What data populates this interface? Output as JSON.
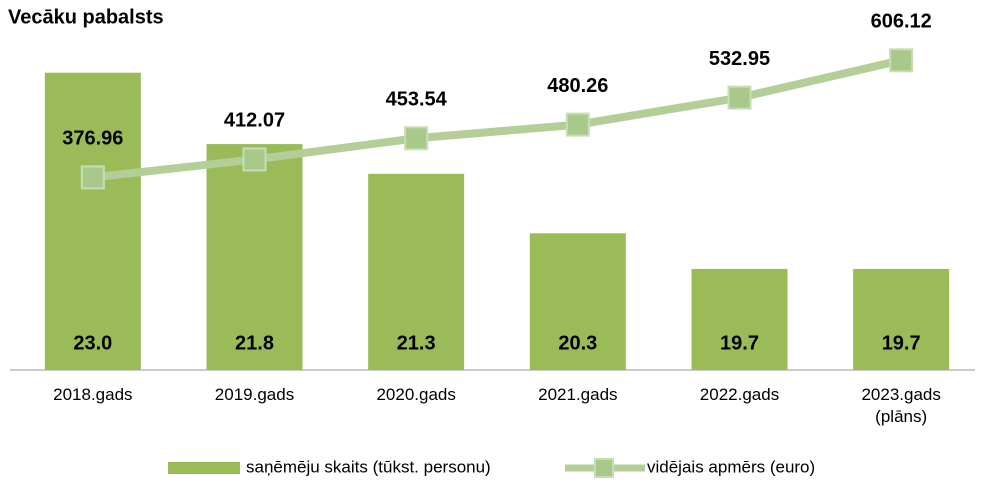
{
  "chart_data": {
    "type": "bar+line",
    "title": "Vecāku pabalsts",
    "categories": [
      "2018.gads",
      "2019.gads",
      "2020.gads",
      "2021.gads",
      "2022.gads",
      "2023.gads\n(plāns)"
    ],
    "series": [
      {
        "name": "saņēmēju skaits (tūkst. personu)",
        "type": "bar",
        "color": "#9bbb59",
        "values": [
          23.0,
          21.8,
          21.3,
          20.3,
          19.7,
          19.7
        ],
        "value_labels": [
          "23.0",
          "21.8",
          "21.3",
          "20.3",
          "19.7",
          "19.7"
        ]
      },
      {
        "name": "vidējais apmērs (euro)",
        "type": "line",
        "axis": "y2",
        "color": "#b3cf97",
        "values": [
          376.96,
          412.07,
          453.54,
          480.26,
          532.95,
          606.12
        ]
      }
    ],
    "ylim": [
      18,
      23.5
    ],
    "y2lim": [
      0,
      640
    ]
  }
}
